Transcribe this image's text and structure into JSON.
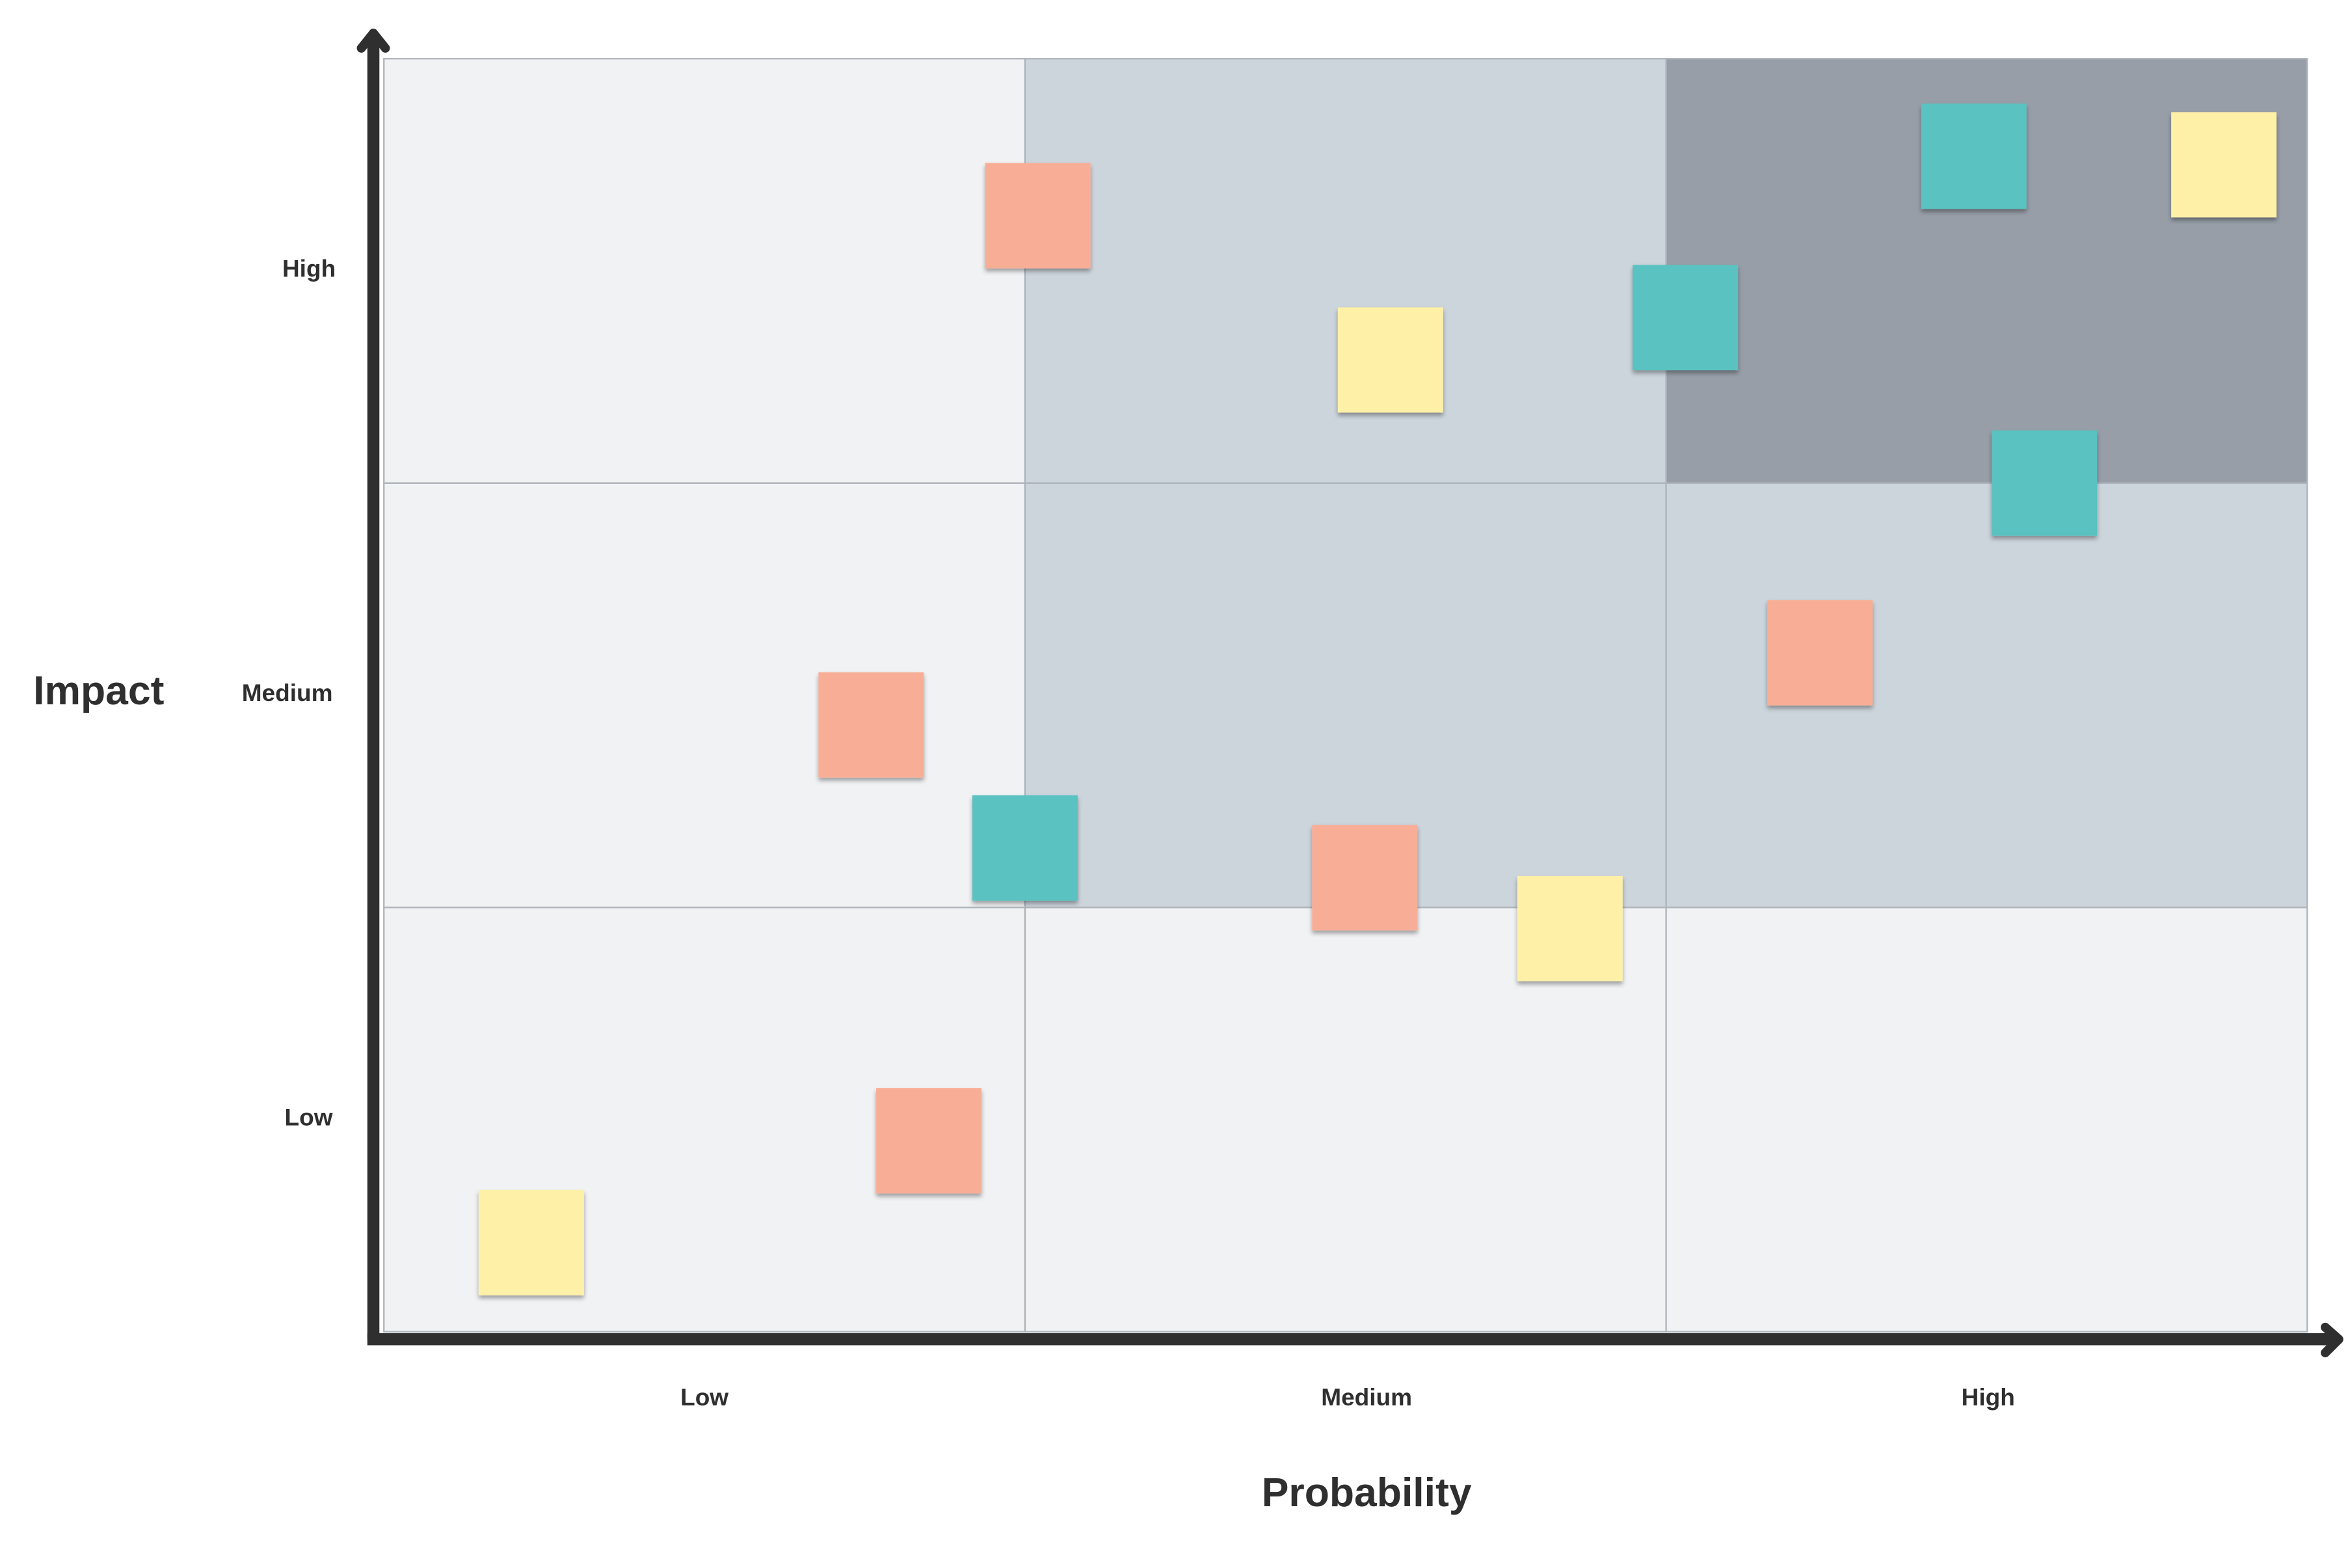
{
  "axes": {
    "y_title": "Impact",
    "x_title": "Probability",
    "y_levels": [
      "Low",
      "Medium",
      "High"
    ],
    "x_levels": [
      "Low",
      "Medium",
      "High"
    ]
  },
  "colors": {
    "low_zone": "#F1F2F4",
    "medium_zone": "#CCD4DC",
    "high_zone": "#979EA8",
    "grid_line": "#AEB4BA",
    "axis": "#2F2F2F",
    "note_salmon": "#F8AE96",
    "note_yellow": "#FFF0A8",
    "note_teal": "#5AC2C0"
  },
  "zones": [
    [
      "low_zone",
      "low_zone",
      "low_zone"
    ],
    [
      "low_zone",
      "medium_zone",
      "medium_zone"
    ],
    [
      "low_zone",
      "medium_zone",
      "high_zone"
    ]
  ],
  "notes": [
    {
      "color": "note_salmon",
      "probability": 1.02,
      "impact": 2.63
    },
    {
      "color": "note_yellow",
      "probability": 1.57,
      "impact": 2.29
    },
    {
      "color": "note_teal",
      "probability": 2.03,
      "impact": 2.39
    },
    {
      "color": "note_teal",
      "probability": 2.48,
      "impact": 2.77
    },
    {
      "color": "note_yellow",
      "probability": 2.87,
      "impact": 2.75
    },
    {
      "color": "note_teal",
      "probability": 2.59,
      "impact": 2.0
    },
    {
      "color": "note_salmon",
      "probability": 2.24,
      "impact": 1.6
    },
    {
      "color": "note_salmon",
      "probability": 0.76,
      "impact": 1.43
    },
    {
      "color": "note_teal",
      "probability": 1.0,
      "impact": 1.14
    },
    {
      "color": "note_salmon",
      "probability": 1.53,
      "impact": 1.07
    },
    {
      "color": "note_yellow",
      "probability": 1.85,
      "impact": 0.95
    },
    {
      "color": "note_salmon",
      "probability": 0.85,
      "impact": 0.45
    },
    {
      "color": "note_yellow",
      "probability": 0.23,
      "impact": 0.21
    }
  ]
}
